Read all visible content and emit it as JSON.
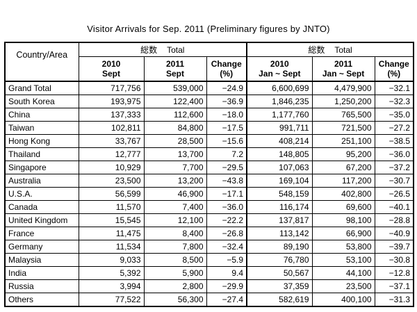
{
  "title": "Visitor Arrivals for Sep. 2011 (Preliminary figures by JNTO)",
  "header": {
    "corner": "Country/Area",
    "group1": {
      "jp": "総数",
      "en": "Total"
    },
    "group2": {
      "jp": "総数",
      "en": "Total"
    },
    "columns": [
      {
        "line1": "2010",
        "line2": "Sept"
      },
      {
        "line1": "2011",
        "line2": "Sept"
      },
      {
        "line1": "Change",
        "line2": "(%)"
      },
      {
        "line1": "2010",
        "line2": "Jan ~ Sept"
      },
      {
        "line1": "2011",
        "line2": "Jan ~ Sept"
      },
      {
        "line1": "Change",
        "line2": "(%)"
      }
    ]
  },
  "rows": [
    {
      "name": "Grand Total",
      "v": [
        "717,756",
        "539,000",
        "−24.9",
        "6,600,699",
        "4,479,900",
        "−32.1"
      ]
    },
    {
      "name": "South Korea",
      "v": [
        "193,975",
        "122,400",
        "−36.9",
        "1,846,235",
        "1,250,200",
        "−32.3"
      ]
    },
    {
      "name": "China",
      "v": [
        "137,333",
        "112,600",
        "−18.0",
        "1,177,760",
        "765,500",
        "−35.0"
      ]
    },
    {
      "name": "Taiwan",
      "v": [
        "102,811",
        "84,800",
        "−17.5",
        "991,711",
        "721,500",
        "−27.2"
      ]
    },
    {
      "name": "Hong Kong",
      "v": [
        "33,767",
        "28,500",
        "−15.6",
        "408,214",
        "251,100",
        "−38.5"
      ]
    },
    {
      "name": "Thailand",
      "v": [
        "12,777",
        "13,700",
        "7.2",
        "148,805",
        "95,200",
        "−36.0"
      ]
    },
    {
      "name": "Singapore",
      "v": [
        "10,929",
        "7,700",
        "−29.5",
        "107,063",
        "67,200",
        "−37.2"
      ]
    },
    {
      "name": "Australia",
      "v": [
        "23,500",
        "13,200",
        "−43.8",
        "169,104",
        "117,200",
        "−30.7"
      ]
    },
    {
      "name": "U.S.A.",
      "v": [
        "56,599",
        "46,900",
        "−17.1",
        "548,159",
        "402,800",
        "−26.5"
      ]
    },
    {
      "name": "Canada",
      "v": [
        "11,570",
        "7,400",
        "−36.0",
        "116,174",
        "69,600",
        "−40.1"
      ]
    },
    {
      "name": "United Kingdom",
      "v": [
        "15,545",
        "12,100",
        "−22.2",
        "137,817",
        "98,100",
        "−28.8"
      ]
    },
    {
      "name": "France",
      "v": [
        "11,475",
        "8,400",
        "−26.8",
        "113,142",
        "66,900",
        "−40.9"
      ]
    },
    {
      "name": "Germany",
      "v": [
        "11,534",
        "7,800",
        "−32.4",
        "89,190",
        "53,800",
        "−39.7"
      ]
    },
    {
      "name": "Malaysia",
      "v": [
        "9,033",
        "8,500",
        "−5.9",
        "76,780",
        "53,100",
        "−30.8"
      ]
    },
    {
      "name": "India",
      "v": [
        "5,392",
        "5,900",
        "9.4",
        "50,567",
        "44,100",
        "−12.8"
      ]
    },
    {
      "name": "Russia",
      "v": [
        "3,994",
        "2,800",
        "−29.9",
        "37,359",
        "23,500",
        "−37.1"
      ]
    },
    {
      "name": "Others",
      "v": [
        "77,522",
        "56,300",
        "−27.4",
        "582,619",
        "400,100",
        "−31.3"
      ]
    }
  ]
}
